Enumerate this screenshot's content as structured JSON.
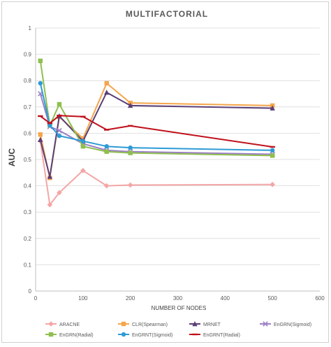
{
  "chart_data": {
    "type": "line",
    "title": "MULTIFACTORIAL",
    "xlabel": "NUMBER OF NODES",
    "ylabel": "AUC",
    "xlim": [
      0,
      600
    ],
    "ylim": [
      0,
      1
    ],
    "x_ticks": [
      0,
      100,
      200,
      300,
      400,
      500,
      600
    ],
    "y_ticks": [
      0,
      0.1,
      0.2,
      0.3,
      0.4,
      0.5,
      0.6,
      0.7,
      0.8,
      0.9,
      1
    ],
    "grid": "horizontal",
    "legend_placement": "bottom",
    "x": [
      10,
      30,
      50,
      100,
      150,
      200,
      500
    ],
    "series": [
      {
        "name": "ARACNE",
        "color": "#f4a6a6",
        "marker": "diamond",
        "values": [
          0.57,
          0.328,
          0.374,
          0.458,
          0.4,
          0.403,
          0.405
        ]
      },
      {
        "name": "CLR(Spearman)",
        "color": "#f5a54a",
        "marker": "square",
        "values": [
          0.595,
          0.43,
          0.662,
          0.58,
          0.79,
          0.715,
          0.705
        ]
      },
      {
        "name": "MRNET",
        "color": "#5b3f78",
        "marker": "triangle",
        "values": [
          0.575,
          0.435,
          0.665,
          0.57,
          0.755,
          0.705,
          0.695
        ]
      },
      {
        "name": "EnGRN(Sigmoid)",
        "color": "#9b7fc4",
        "marker": "cross",
        "values": [
          0.75,
          0.625,
          0.61,
          0.56,
          0.535,
          0.53,
          0.52
        ]
      },
      {
        "name": "EnGRN(Radial)",
        "color": "#8fbf4f",
        "marker": "square",
        "values": [
          0.875,
          0.63,
          0.71,
          0.55,
          0.53,
          0.525,
          0.515
        ]
      },
      {
        "name": "EnGRNT(Sigmoid)",
        "color": "#2e9bd6",
        "marker": "circle",
        "values": [
          0.79,
          0.63,
          0.59,
          0.57,
          0.55,
          0.545,
          0.535
        ]
      },
      {
        "name": "EnGRNT(Radial)",
        "color": "#c0101a",
        "marker": "dash",
        "values": [
          0.665,
          0.638,
          0.667,
          0.663,
          0.613,
          0.628,
          0.548
        ]
      }
    ]
  }
}
